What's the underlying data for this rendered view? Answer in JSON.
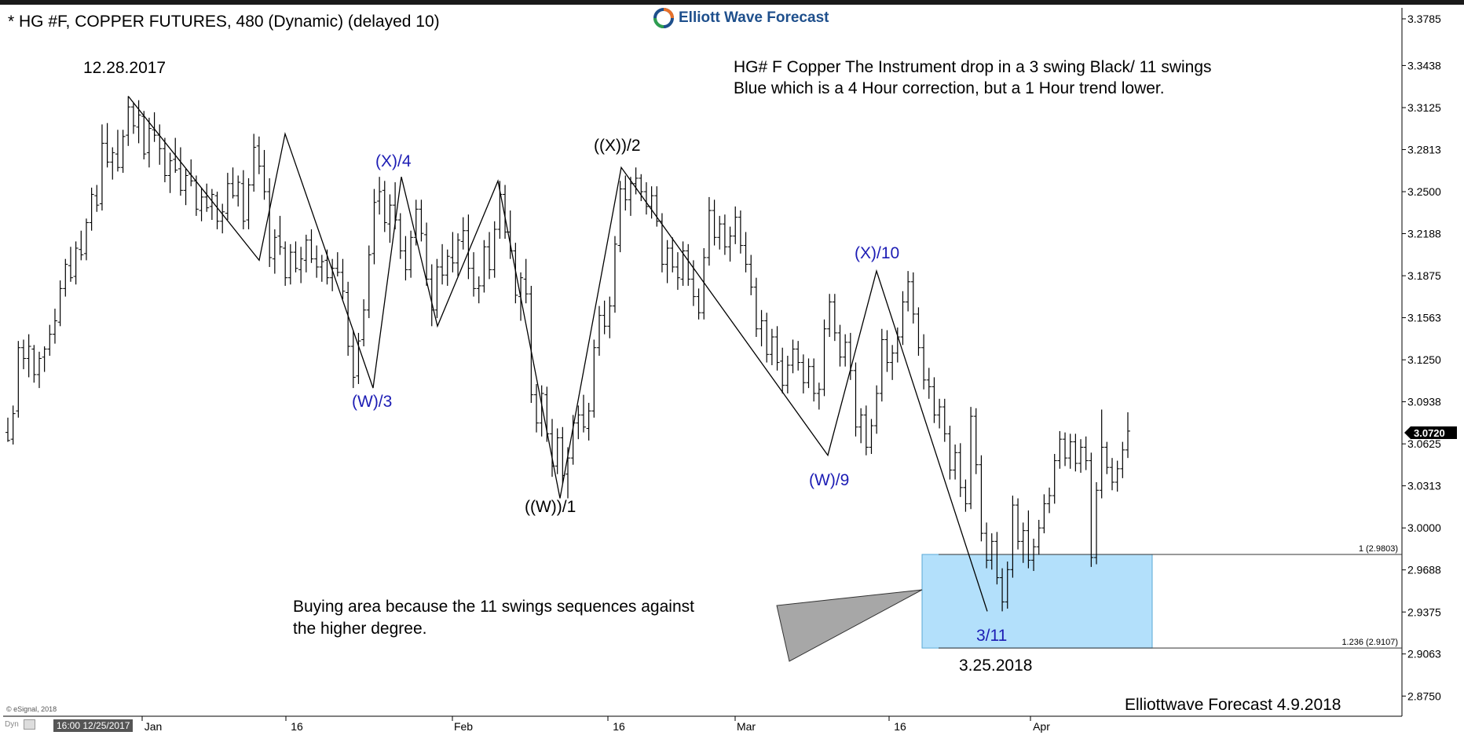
{
  "header": {
    "title": "* HG #F, COPPER FUTURES, 480 (Dynamic) (delayed 10)",
    "brand": "Elliott Wave Forecast"
  },
  "annotations": {
    "note_line1": "HG# F Copper The Instrument drop in a 3 swing Black/ 11 swings",
    "note_line2": "Blue which is a 4 Hour correction, but a 1 Hour trend lower.",
    "buy_line1": "Buying area because the 11 swings sequences against",
    "buy_line2": "the higher degree.",
    "footer": "Elliottwave Forecast 4.9.2018",
    "copyright": "© eSignal, 2018",
    "cursor_time": "16:00 12/25/2017",
    "dyn_label": "Dyn"
  },
  "colors": {
    "price_bars": "#000000",
    "blue_labels": "#1c1cb4",
    "buy_box": "#b3e0fb",
    "arrow": "#a7a7a7",
    "last_price_bg": "#000000",
    "logo_blue": "#1e4f8c",
    "logo_green": "#2e9e4f",
    "logo_orange": "#e8712a"
  },
  "chart_data": {
    "type": "ohlc",
    "ylim": [
      2.86,
      3.389
    ],
    "y_ticks": [
      "2.8750",
      "2.9063",
      "2.9375",
      "2.9688",
      "3.0000",
      "3.0313",
      "3.0625",
      "3.0938",
      "3.1250",
      "3.1563",
      "3.1875",
      "3.2188",
      "3.2500",
      "3.2813",
      "3.3125",
      "3.3438",
      "3.3785"
    ],
    "x_ticks": [
      "Jan",
      "16",
      "Feb",
      "16",
      "Mar",
      "16",
      "Apr"
    ],
    "last_price": "3.0720",
    "fib_levels": [
      {
        "label": "1 (2.9803)",
        "value": 2.9803
      },
      {
        "label": "1.236 (2.9107)",
        "value": 2.9107
      }
    ],
    "buy_zone": {
      "from": 2.9107,
      "to": 2.9803
    },
    "wave_points": [
      {
        "date": "12.28.2017",
        "price": 3.321,
        "label": "12.28.2017",
        "color": "black"
      },
      {
        "date": "01.24",
        "price": 3.104,
        "label": "(W)/3",
        "color": "blue"
      },
      {
        "date": "01.29",
        "price": 3.261,
        "label": "(X)/4",
        "color": "blue"
      },
      {
        "date": "02.09",
        "price": 3.022,
        "label": "((W))/1",
        "color": "black"
      },
      {
        "date": "02.16",
        "price": 3.268,
        "label": "((X))/2",
        "color": "black"
      },
      {
        "date": "03.09",
        "price": 3.054,
        "label": "(W)/9",
        "color": "blue"
      },
      {
        "date": "03.14",
        "price": 3.191,
        "label": "(X)/10",
        "color": "blue"
      },
      {
        "date": "3.25.2018",
        "price": 2.938,
        "label": "3/11",
        "color": "blue"
      },
      {
        "date": "3.25.2018",
        "price": 2.938,
        "label": "3.25.2018",
        "color": "black"
      }
    ],
    "wave_path_black": [
      [
        3.321
      ],
      [
        3.199
      ],
      [
        3.293
      ],
      [
        3.104
      ],
      [
        3.261
      ],
      [
        3.15
      ],
      [
        3.258
      ],
      [
        3.022
      ],
      [
        3.268
      ],
      [
        3.054
      ],
      [
        3.191
      ],
      [
        2.938
      ]
    ],
    "bars": [
      [
        3.071,
        3.082,
        3.064,
        3.065
      ],
      [
        3.066,
        3.091,
        3.062,
        3.085
      ],
      [
        3.087,
        3.139,
        3.082,
        3.134
      ],
      [
        3.134,
        3.14,
        3.118,
        3.126
      ],
      [
        3.126,
        3.144,
        3.112,
        3.135
      ],
      [
        3.133,
        3.136,
        3.108,
        3.114
      ],
      [
        3.114,
        3.131,
        3.104,
        3.126
      ],
      [
        3.127,
        3.135,
        3.116,
        3.133
      ],
      [
        3.133,
        3.151,
        3.128,
        3.144
      ],
      [
        3.144,
        3.163,
        3.137,
        3.154
      ],
      [
        3.153,
        3.184,
        3.15,
        3.178
      ],
      [
        3.178,
        3.2,
        3.172,
        3.196
      ],
      [
        3.195,
        3.209,
        3.183,
        3.186
      ],
      [
        3.187,
        3.213,
        3.181,
        3.208
      ],
      [
        3.207,
        3.221,
        3.199,
        3.203
      ],
      [
        3.204,
        3.23,
        3.199,
        3.227
      ],
      [
        3.227,
        3.253,
        3.221,
        3.248
      ],
      [
        3.247,
        3.255,
        3.235,
        3.24
      ],
      [
        3.241,
        3.3,
        3.236,
        3.286
      ],
      [
        3.286,
        3.301,
        3.268,
        3.272
      ],
      [
        3.272,
        3.283,
        3.259,
        3.279
      ],
      [
        3.278,
        3.296,
        3.265,
        3.268
      ],
      [
        3.268,
        3.296,
        3.264,
        3.291
      ],
      [
        3.292,
        3.321,
        3.284,
        3.313
      ],
      [
        3.313,
        3.316,
        3.293,
        3.299
      ],
      [
        3.298,
        3.318,
        3.286,
        3.307
      ],
      [
        3.306,
        3.31,
        3.274,
        3.278
      ],
      [
        3.279,
        3.305,
        3.268,
        3.297
      ],
      [
        3.296,
        3.309,
        3.287,
        3.292
      ],
      [
        3.292,
        3.3,
        3.27,
        3.282
      ],
      [
        3.282,
        3.29,
        3.257,
        3.262
      ],
      [
        3.262,
        3.279,
        3.249,
        3.273
      ],
      [
        3.274,
        3.29,
        3.264,
        3.266
      ],
      [
        3.267,
        3.283,
        3.247,
        3.251
      ],
      [
        3.251,
        3.267,
        3.24,
        3.262
      ],
      [
        3.263,
        3.274,
        3.254,
        3.258
      ],
      [
        3.258,
        3.262,
        3.232,
        3.237
      ],
      [
        3.236,
        3.253,
        3.228,
        3.246
      ],
      [
        3.246,
        3.256,
        3.235,
        3.238
      ],
      [
        3.239,
        3.252,
        3.229,
        3.248
      ],
      [
        3.247,
        3.25,
        3.222,
        3.228
      ],
      [
        3.228,
        3.241,
        3.219,
        3.235
      ],
      [
        3.234,
        3.264,
        3.229,
        3.256
      ],
      [
        3.256,
        3.268,
        3.245,
        3.247
      ],
      [
        3.247,
        3.262,
        3.239,
        3.257
      ],
      [
        3.256,
        3.266,
        3.222,
        3.228
      ],
      [
        3.229,
        3.26,
        3.222,
        3.255
      ],
      [
        3.255,
        3.293,
        3.25,
        3.283
      ],
      [
        3.284,
        3.291,
        3.263,
        3.269
      ],
      [
        3.269,
        3.281,
        3.244,
        3.25
      ],
      [
        3.25,
        3.26,
        3.194,
        3.201
      ],
      [
        3.2,
        3.222,
        3.189,
        3.216
      ],
      [
        3.217,
        3.232,
        3.203,
        3.209
      ],
      [
        3.208,
        3.213,
        3.18,
        3.186
      ],
      [
        3.186,
        3.211,
        3.181,
        3.205
      ],
      [
        3.205,
        3.213,
        3.19,
        3.193
      ],
      [
        3.192,
        3.209,
        3.182,
        3.2
      ],
      [
        3.199,
        3.218,
        3.19,
        3.214
      ],
      [
        3.214,
        3.222,
        3.197,
        3.2
      ],
      [
        3.2,
        3.21,
        3.186,
        3.194
      ],
      [
        3.194,
        3.203,
        3.183,
        3.198
      ],
      [
        3.199,
        3.207,
        3.181,
        3.186
      ],
      [
        3.186,
        3.2,
        3.176,
        3.193
      ],
      [
        3.193,
        3.205,
        3.187,
        3.19
      ],
      [
        3.19,
        3.2,
        3.17,
        3.176
      ],
      [
        3.175,
        3.183,
        3.128,
        3.135
      ],
      [
        3.135,
        3.147,
        3.104,
        3.112
      ],
      [
        3.113,
        3.145,
        3.107,
        3.139
      ],
      [
        3.14,
        3.17,
        3.135,
        3.162
      ],
      [
        3.162,
        3.21,
        3.156,
        3.203
      ],
      [
        3.204,
        3.252,
        3.196,
        3.242
      ],
      [
        3.243,
        3.261,
        3.233,
        3.25
      ],
      [
        3.251,
        3.258,
        3.22,
        3.227
      ],
      [
        3.226,
        3.248,
        3.212,
        3.24
      ],
      [
        3.24,
        3.257,
        3.222,
        3.229
      ],
      [
        3.229,
        3.234,
        3.2,
        3.206
      ],
      [
        3.206,
        3.217,
        3.184,
        3.192
      ],
      [
        3.192,
        3.221,
        3.186,
        3.216
      ],
      [
        3.216,
        3.244,
        3.21,
        3.237
      ],
      [
        3.237,
        3.244,
        3.213,
        3.219
      ],
      [
        3.218,
        3.227,
        3.18,
        3.185
      ],
      [
        3.185,
        3.196,
        3.15,
        3.162
      ],
      [
        3.162,
        3.2,
        3.156,
        3.194
      ],
      [
        3.194,
        3.211,
        3.181,
        3.188
      ],
      [
        3.188,
        3.207,
        3.18,
        3.202
      ],
      [
        3.201,
        3.22,
        3.19,
        3.197
      ],
      [
        3.197,
        3.219,
        3.187,
        3.214
      ],
      [
        3.213,
        3.231,
        3.207,
        3.221
      ],
      [
        3.221,
        3.233,
        3.185,
        3.193
      ],
      [
        3.193,
        3.205,
        3.172,
        3.178
      ],
      [
        3.178,
        3.187,
        3.167,
        3.18
      ],
      [
        3.18,
        3.214,
        3.175,
        3.209
      ],
      [
        3.209,
        3.22,
        3.185,
        3.192
      ],
      [
        3.192,
        3.228,
        3.186,
        3.222
      ],
      [
        3.222,
        3.258,
        3.215,
        3.248
      ],
      [
        3.248,
        3.255,
        3.215,
        3.22
      ],
      [
        3.22,
        3.236,
        3.2,
        3.206
      ],
      [
        3.206,
        3.212,
        3.167,
        3.173
      ],
      [
        3.172,
        3.19,
        3.154,
        3.186
      ],
      [
        3.185,
        3.2,
        3.167,
        3.174
      ],
      [
        3.174,
        3.18,
        3.093,
        3.099
      ],
      [
        3.099,
        3.107,
        3.071,
        3.078
      ],
      [
        3.078,
        3.106,
        3.068,
        3.1
      ],
      [
        3.099,
        3.105,
        3.064,
        3.07
      ],
      [
        3.07,
        3.081,
        3.038,
        3.046
      ],
      [
        3.046,
        3.074,
        3.04,
        3.067
      ],
      [
        3.067,
        3.075,
        3.033,
        3.039
      ],
      [
        3.04,
        3.06,
        3.022,
        3.052
      ],
      [
        3.052,
        3.084,
        3.047,
        3.078
      ],
      [
        3.078,
        3.091,
        3.066,
        3.084
      ],
      [
        3.084,
        3.099,
        3.071,
        3.075
      ],
      [
        3.074,
        3.093,
        3.065,
        3.087
      ],
      [
        3.087,
        3.14,
        3.082,
        3.134
      ],
      [
        3.134,
        3.165,
        3.128,
        3.158
      ],
      [
        3.158,
        3.169,
        3.144,
        3.15
      ],
      [
        3.15,
        3.172,
        3.141,
        3.165
      ],
      [
        3.165,
        3.217,
        3.16,
        3.211
      ],
      [
        3.21,
        3.258,
        3.205,
        3.252
      ],
      [
        3.252,
        3.262,
        3.236,
        3.244
      ],
      [
        3.244,
        3.261,
        3.232,
        3.256
      ],
      [
        3.256,
        3.268,
        3.248,
        3.26
      ],
      [
        3.26,
        3.263,
        3.243,
        3.25
      ],
      [
        3.25,
        3.257,
        3.233,
        3.239
      ],
      [
        3.239,
        3.254,
        3.23,
        3.247
      ],
      [
        3.247,
        3.254,
        3.224,
        3.228
      ],
      [
        3.228,
        3.234,
        3.19,
        3.196
      ],
      [
        3.196,
        3.214,
        3.182,
        3.208
      ],
      [
        3.208,
        3.216,
        3.19,
        3.194
      ],
      [
        3.194,
        3.205,
        3.177,
        3.186
      ],
      [
        3.185,
        3.213,
        3.18,
        3.206
      ],
      [
        3.206,
        3.211,
        3.18,
        3.185
      ],
      [
        3.185,
        3.199,
        3.165,
        3.172
      ],
      [
        3.172,
        3.178,
        3.155,
        3.16
      ],
      [
        3.16,
        3.208,
        3.155,
        3.201
      ],
      [
        3.201,
        3.246,
        3.195,
        3.236
      ],
      [
        3.236,
        3.244,
        3.21,
        3.216
      ],
      [
        3.216,
        3.232,
        3.207,
        3.226
      ],
      [
        3.226,
        3.233,
        3.203,
        3.209
      ],
      [
        3.209,
        3.224,
        3.198,
        3.217
      ],
      [
        3.217,
        3.239,
        3.211,
        3.231
      ],
      [
        3.231,
        3.236,
        3.204,
        3.21
      ],
      [
        3.21,
        3.22,
        3.19,
        3.196
      ],
      [
        3.196,
        3.203,
        3.173,
        3.179
      ],
      [
        3.179,
        3.186,
        3.142,
        3.148
      ],
      [
        3.148,
        3.162,
        3.135,
        3.154
      ],
      [
        3.154,
        3.16,
        3.123,
        3.129
      ],
      [
        3.129,
        3.148,
        3.121,
        3.142
      ],
      [
        3.142,
        3.15,
        3.117,
        3.123
      ],
      [
        3.124,
        3.134,
        3.1,
        3.106
      ],
      [
        3.106,
        3.128,
        3.1,
        3.121
      ],
      [
        3.121,
        3.14,
        3.115,
        3.133
      ],
      [
        3.133,
        3.139,
        3.117,
        3.123
      ],
      [
        3.123,
        3.129,
        3.1,
        3.108
      ],
      [
        3.108,
        3.126,
        3.104,
        3.12
      ],
      [
        3.12,
        3.126,
        3.094,
        3.1
      ],
      [
        3.1,
        3.108,
        3.088,
        3.103
      ],
      [
        3.103,
        3.155,
        3.098,
        3.148
      ],
      [
        3.148,
        3.174,
        3.142,
        3.168
      ],
      [
        3.168,
        3.174,
        3.139,
        3.145
      ],
      [
        3.145,
        3.151,
        3.12,
        3.127
      ],
      [
        3.127,
        3.144,
        3.12,
        3.138
      ],
      [
        3.138,
        3.145,
        3.11,
        3.117
      ],
      [
        3.117,
        3.123,
        3.068,
        3.075
      ],
      [
        3.075,
        3.089,
        3.063,
        3.084
      ],
      [
        3.084,
        3.091,
        3.054,
        3.06
      ],
      [
        3.06,
        3.081,
        3.055,
        3.076
      ],
      [
        3.076,
        3.106,
        3.07,
        3.1
      ],
      [
        3.1,
        3.148,
        3.094,
        3.14
      ],
      [
        3.14,
        3.147,
        3.116,
        3.123
      ],
      [
        3.123,
        3.136,
        3.11,
        3.13
      ],
      [
        3.13,
        3.149,
        3.123,
        3.142
      ],
      [
        3.142,
        3.176,
        3.136,
        3.168
      ],
      [
        3.168,
        3.191,
        3.161,
        3.183
      ],
      [
        3.183,
        3.19,
        3.152,
        3.159
      ],
      [
        3.159,
        3.164,
        3.128,
        3.134
      ],
      [
        3.134,
        3.144,
        3.103,
        3.11
      ],
      [
        3.11,
        3.119,
        3.096,
        3.105
      ],
      [
        3.105,
        3.112,
        3.078,
        3.084
      ],
      [
        3.084,
        3.096,
        3.074,
        3.09
      ],
      [
        3.09,
        3.096,
        3.064,
        3.07
      ],
      [
        3.07,
        3.076,
        3.036,
        3.043
      ],
      [
        3.043,
        3.062,
        3.036,
        3.056
      ],
      [
        3.056,
        3.063,
        3.023,
        3.03
      ],
      [
        3.03,
        3.036,
        3.012,
        3.018
      ],
      [
        3.018,
        3.09,
        3.014,
        3.083
      ],
      [
        3.083,
        3.089,
        3.04,
        3.047
      ],
      [
        3.047,
        3.054,
        2.99,
        2.996
      ],
      [
        2.996,
        3.004,
        2.97,
        2.976
      ],
      [
        2.976,
        2.996,
        2.969,
        2.99
      ],
      [
        2.99,
        2.997,
        2.958,
        2.963
      ],
      [
        2.963,
        2.97,
        2.938,
        2.945
      ],
      [
        2.945,
        2.975,
        2.94,
        2.969
      ],
      [
        2.969,
        3.024,
        2.963,
        3.017
      ],
      [
        3.017,
        3.022,
        2.984,
        2.99
      ],
      [
        2.99,
        3.004,
        2.974,
        2.998
      ],
      [
        2.998,
        3.013,
        2.97,
        2.976
      ],
      [
        2.976,
        2.992,
        2.968,
        2.986
      ],
      [
        2.986,
        3.006,
        2.98,
        3.0
      ],
      [
        3.0,
        3.025,
        2.996,
        3.018
      ],
      [
        3.018,
        3.03,
        3.011,
        3.024
      ],
      [
        3.024,
        3.055,
        3.018,
        3.05
      ],
      [
        3.05,
        3.072,
        3.044,
        3.066
      ],
      [
        3.066,
        3.071,
        3.046,
        3.052
      ],
      [
        3.052,
        3.07,
        3.044,
        3.064
      ],
      [
        3.064,
        3.07,
        3.042,
        3.048
      ],
      [
        3.048,
        3.066,
        3.041,
        3.06
      ],
      [
        3.06,
        3.068,
        3.043,
        3.05
      ],
      [
        3.05,
        3.056,
        2.971,
        2.978
      ],
      [
        2.978,
        3.034,
        2.973,
        3.028
      ],
      [
        3.028,
        3.088,
        3.022,
        3.06
      ],
      [
        3.06,
        3.064,
        3.04,
        3.045
      ],
      [
        3.045,
        3.052,
        3.028,
        3.034
      ],
      [
        3.034,
        3.05,
        3.027,
        3.044
      ],
      [
        3.044,
        3.064,
        3.037,
        3.058
      ],
      [
        3.058,
        3.086,
        3.052,
        3.072
      ]
    ]
  }
}
